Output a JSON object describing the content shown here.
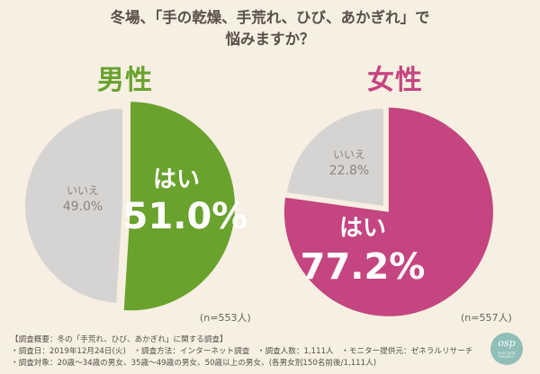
{
  "title": {
    "line1": "冬場、「手の乾燥、手荒れ、ひび、あかぎれ」で",
    "line2": "悩みますか？"
  },
  "colors": {
    "male": "#6aa22e",
    "female": "#c4457f",
    "no": "#d6d4d2",
    "background": "#f6efe2"
  },
  "chart_data": [
    {
      "type": "pie",
      "title": "男性",
      "n_label": "(n=553人)",
      "slices": [
        {
          "label": "はい",
          "value": 51.0,
          "value_label": "51.0%",
          "color": "#6aa22e"
        },
        {
          "label": "いいえ",
          "value": 49.0,
          "value_label": "49.0%",
          "color": "#d6d4d2"
        }
      ]
    },
    {
      "type": "pie",
      "title": "女性",
      "n_label": "(n=557人)",
      "slices": [
        {
          "label": "はい",
          "value": 77.2,
          "value_label": "77.2%",
          "color": "#c4457f"
        },
        {
          "label": "いいえ",
          "value": 22.8,
          "value_label": "22.8%",
          "color": "#d6d4d2"
        }
      ]
    }
  ],
  "survey": {
    "line1": "【調査概要：冬の「手荒れ、ひび、あかぎれ」に関する調査】",
    "line2": "・調査日：2019年12月24日(火)　・調査方法：インターネット調査　・調査人数：1,111人　・モニター提供元：ゼネラルリサーチ",
    "line3": "・調査対象：20歳～34歳の男女、35歳～49歳の男女、50歳以上の男女、(各男女別150名前後/1,111人)"
  },
  "logo": {
    "text": "osp",
    "sub": "OUR SKIN PROJECT"
  }
}
